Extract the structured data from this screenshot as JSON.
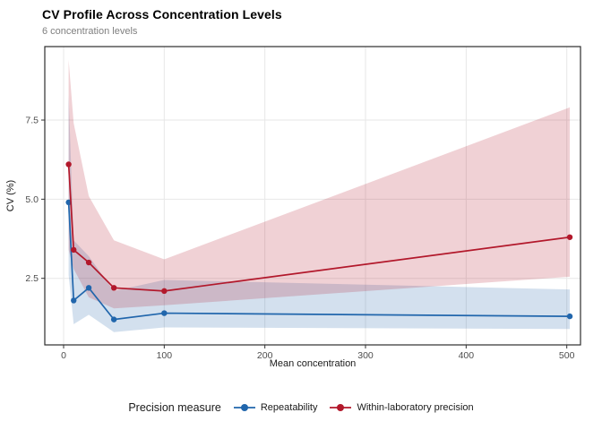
{
  "header": {
    "title": "CV Profile Across Concentration Levels",
    "subtitle": "6 concentration levels"
  },
  "legend": {
    "title": "Precision measure",
    "items": [
      {
        "label": "Repeatability",
        "color": "#2166ac"
      },
      {
        "label": "Within-laboratory precision",
        "color": "#b2182b"
      }
    ]
  },
  "colors": {
    "background": "#ffffff",
    "panel_border": "#2d2d2d",
    "gridline": "#e7e7e7",
    "tick_mark": "#333333",
    "tick_label": "#4d4d4d",
    "axis_title": "#1a1a1a",
    "subtitle": "#7f7f7f",
    "repeatability": "#2166ac",
    "within_laboratory": "#b2182b"
  },
  "chart_data": {
    "type": "line",
    "title": "CV Profile Across Concentration Levels",
    "subtitle": "6 concentration levels",
    "xlabel": "Mean concentration",
    "ylabel": "CV (%)",
    "xlim": [
      -19,
      514
    ],
    "ylim": [
      0.4,
      9.8
    ],
    "grid": "major",
    "x_ticks": [
      0,
      100,
      200,
      300,
      400,
      500
    ],
    "x_tick_labels": [
      "0",
      "100",
      "200",
      "300",
      "400",
      "500"
    ],
    "y_ticks": [
      2.5,
      5.0,
      7.5
    ],
    "y_tick_labels": [
      "2.5",
      "5.0",
      "7.5"
    ],
    "legend_title": "Precision measure",
    "legend_position": "bottom",
    "x": [
      5,
      10,
      25,
      50,
      100,
      503
    ],
    "series": [
      {
        "name": "Repeatability",
        "color": "#2166ac",
        "values": [
          4.9,
          1.8,
          2.2,
          1.2,
          1.4,
          1.3
        ],
        "ribbon_lower": [
          2.6,
          1.05,
          1.35,
          0.8,
          0.95,
          0.9
        ],
        "ribbon_upper": [
          8.3,
          3.7,
          3.2,
          2.1,
          2.45,
          2.15
        ]
      },
      {
        "name": "Within-laboratory precision",
        "color": "#b2182b",
        "values": [
          6.1,
          3.4,
          3.0,
          2.2,
          2.1,
          3.8
        ],
        "ribbon_lower": [
          3.4,
          2.8,
          1.9,
          1.55,
          1.65,
          2.55
        ],
        "ribbon_upper": [
          9.4,
          7.4,
          5.1,
          3.7,
          3.1,
          7.9
        ]
      }
    ],
    "ribbon_opacity": 0.2
  }
}
